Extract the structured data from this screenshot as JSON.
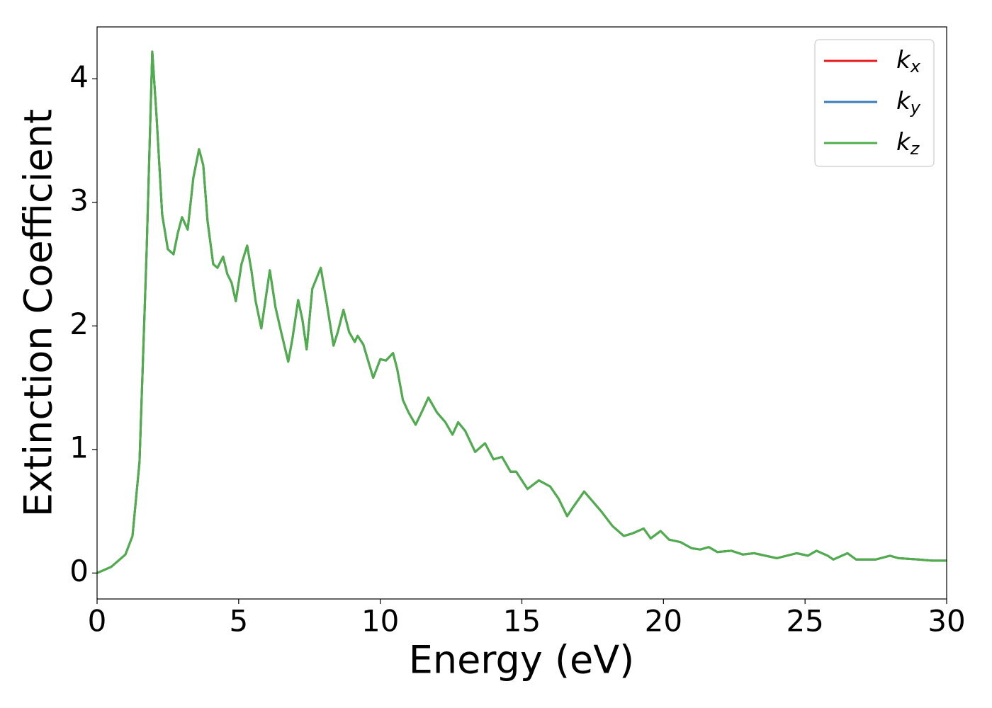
{
  "chart_data": {
    "type": "line",
    "xlabel": "Energy (eV)",
    "ylabel": "Extinction Coefficient",
    "x": [
      0,
      0.5,
      1.0,
      1.25,
      1.5,
      1.75,
      1.95,
      2.1,
      2.3,
      2.5,
      2.7,
      2.85,
      3.0,
      3.2,
      3.4,
      3.6,
      3.75,
      3.9,
      4.1,
      4.25,
      4.45,
      4.6,
      4.75,
      4.9,
      5.1,
      5.3,
      5.45,
      5.6,
      5.8,
      6.1,
      6.3,
      6.5,
      6.75,
      6.9,
      7.1,
      7.25,
      7.4,
      7.6,
      7.9,
      8.1,
      8.35,
      8.5,
      8.7,
      8.9,
      9.1,
      9.2,
      9.4,
      9.75,
      10.0,
      10.2,
      10.45,
      10.6,
      10.8,
      11.0,
      11.25,
      11.5,
      11.7,
      12.0,
      12.3,
      12.55,
      12.75,
      13.0,
      13.35,
      13.7,
      14.0,
      14.3,
      14.6,
      14.8,
      15.2,
      15.6,
      16.0,
      16.3,
      16.6,
      16.8,
      17.2,
      17.5,
      17.8,
      18.2,
      18.6,
      18.9,
      19.3,
      19.55,
      19.9,
      20.2,
      20.6,
      21.0,
      21.3,
      21.6,
      21.9,
      22.4,
      22.8,
      23.2,
      23.6,
      24.0,
      24.7,
      25.1,
      25.4,
      25.8,
      26.0,
      26.5,
      26.8,
      27.5,
      28.0,
      28.3,
      29.0,
      29.5,
      30.0
    ],
    "series": [
      {
        "name": "kx",
        "color": "#e41a1c",
        "values": [
          0.0,
          0.05,
          0.15,
          0.3,
          0.9,
          2.6,
          4.22,
          3.7,
          2.9,
          2.62,
          2.58,
          2.75,
          2.88,
          2.78,
          3.2,
          3.43,
          3.3,
          2.85,
          2.5,
          2.47,
          2.56,
          2.42,
          2.35,
          2.2,
          2.5,
          2.65,
          2.45,
          2.2,
          1.98,
          2.45,
          2.15,
          1.95,
          1.71,
          1.9,
          2.21,
          2.05,
          1.81,
          2.3,
          2.47,
          2.2,
          1.84,
          1.95,
          2.13,
          1.95,
          1.87,
          1.92,
          1.85,
          1.58,
          1.73,
          1.72,
          1.78,
          1.65,
          1.4,
          1.3,
          1.2,
          1.32,
          1.42,
          1.3,
          1.22,
          1.12,
          1.22,
          1.15,
          0.98,
          1.05,
          0.92,
          0.94,
          0.82,
          0.82,
          0.68,
          0.75,
          0.7,
          0.6,
          0.46,
          0.53,
          0.66,
          0.58,
          0.5,
          0.38,
          0.3,
          0.32,
          0.36,
          0.28,
          0.34,
          0.27,
          0.25,
          0.2,
          0.19,
          0.21,
          0.17,
          0.18,
          0.15,
          0.16,
          0.14,
          0.12,
          0.16,
          0.14,
          0.18,
          0.14,
          0.11,
          0.16,
          0.11,
          0.11,
          0.14,
          0.12,
          0.11,
          0.1,
          0.1
        ]
      },
      {
        "name": "ky",
        "color": "#377eb8",
        "values": [
          0.0,
          0.05,
          0.15,
          0.3,
          0.9,
          2.6,
          4.22,
          3.7,
          2.9,
          2.62,
          2.58,
          2.75,
          2.88,
          2.78,
          3.2,
          3.43,
          3.3,
          2.85,
          2.5,
          2.47,
          2.56,
          2.42,
          2.35,
          2.2,
          2.5,
          2.65,
          2.45,
          2.2,
          1.98,
          2.45,
          2.15,
          1.95,
          1.71,
          1.9,
          2.21,
          2.05,
          1.81,
          2.3,
          2.47,
          2.2,
          1.84,
          1.95,
          2.13,
          1.95,
          1.87,
          1.92,
          1.85,
          1.58,
          1.73,
          1.72,
          1.78,
          1.65,
          1.4,
          1.3,
          1.2,
          1.32,
          1.42,
          1.3,
          1.22,
          1.12,
          1.22,
          1.15,
          0.98,
          1.05,
          0.92,
          0.94,
          0.82,
          0.82,
          0.68,
          0.75,
          0.7,
          0.6,
          0.46,
          0.53,
          0.66,
          0.58,
          0.5,
          0.38,
          0.3,
          0.32,
          0.36,
          0.28,
          0.34,
          0.27,
          0.25,
          0.2,
          0.19,
          0.21,
          0.17,
          0.18,
          0.15,
          0.16,
          0.14,
          0.12,
          0.16,
          0.14,
          0.18,
          0.14,
          0.11,
          0.16,
          0.11,
          0.11,
          0.14,
          0.12,
          0.11,
          0.1,
          0.1
        ]
      },
      {
        "name": "kz",
        "color": "#4daf4a",
        "values": [
          0.0,
          0.05,
          0.15,
          0.3,
          0.9,
          2.6,
          4.22,
          3.7,
          2.9,
          2.62,
          2.58,
          2.75,
          2.88,
          2.78,
          3.2,
          3.43,
          3.3,
          2.85,
          2.5,
          2.47,
          2.56,
          2.42,
          2.35,
          2.2,
          2.5,
          2.65,
          2.45,
          2.2,
          1.98,
          2.45,
          2.15,
          1.95,
          1.71,
          1.9,
          2.21,
          2.05,
          1.81,
          2.3,
          2.47,
          2.2,
          1.84,
          1.95,
          2.13,
          1.95,
          1.87,
          1.92,
          1.85,
          1.58,
          1.73,
          1.72,
          1.78,
          1.65,
          1.4,
          1.3,
          1.2,
          1.32,
          1.42,
          1.3,
          1.22,
          1.12,
          1.22,
          1.15,
          0.98,
          1.05,
          0.92,
          0.94,
          0.82,
          0.82,
          0.68,
          0.75,
          0.7,
          0.6,
          0.46,
          0.53,
          0.66,
          0.58,
          0.5,
          0.38,
          0.3,
          0.32,
          0.36,
          0.28,
          0.34,
          0.27,
          0.25,
          0.2,
          0.19,
          0.21,
          0.17,
          0.18,
          0.15,
          0.16,
          0.14,
          0.12,
          0.16,
          0.14,
          0.18,
          0.14,
          0.11,
          0.16,
          0.11,
          0.11,
          0.14,
          0.12,
          0.11,
          0.1,
          0.1
        ]
      }
    ],
    "xlim": [
      0,
      30
    ],
    "xticks": [
      0,
      5,
      10,
      15,
      20,
      25,
      30
    ],
    "ylim": [
      -0.21,
      4.42
    ],
    "yticks": [
      0,
      1,
      2,
      3,
      4
    ],
    "grid": false,
    "legend": "upper right"
  }
}
